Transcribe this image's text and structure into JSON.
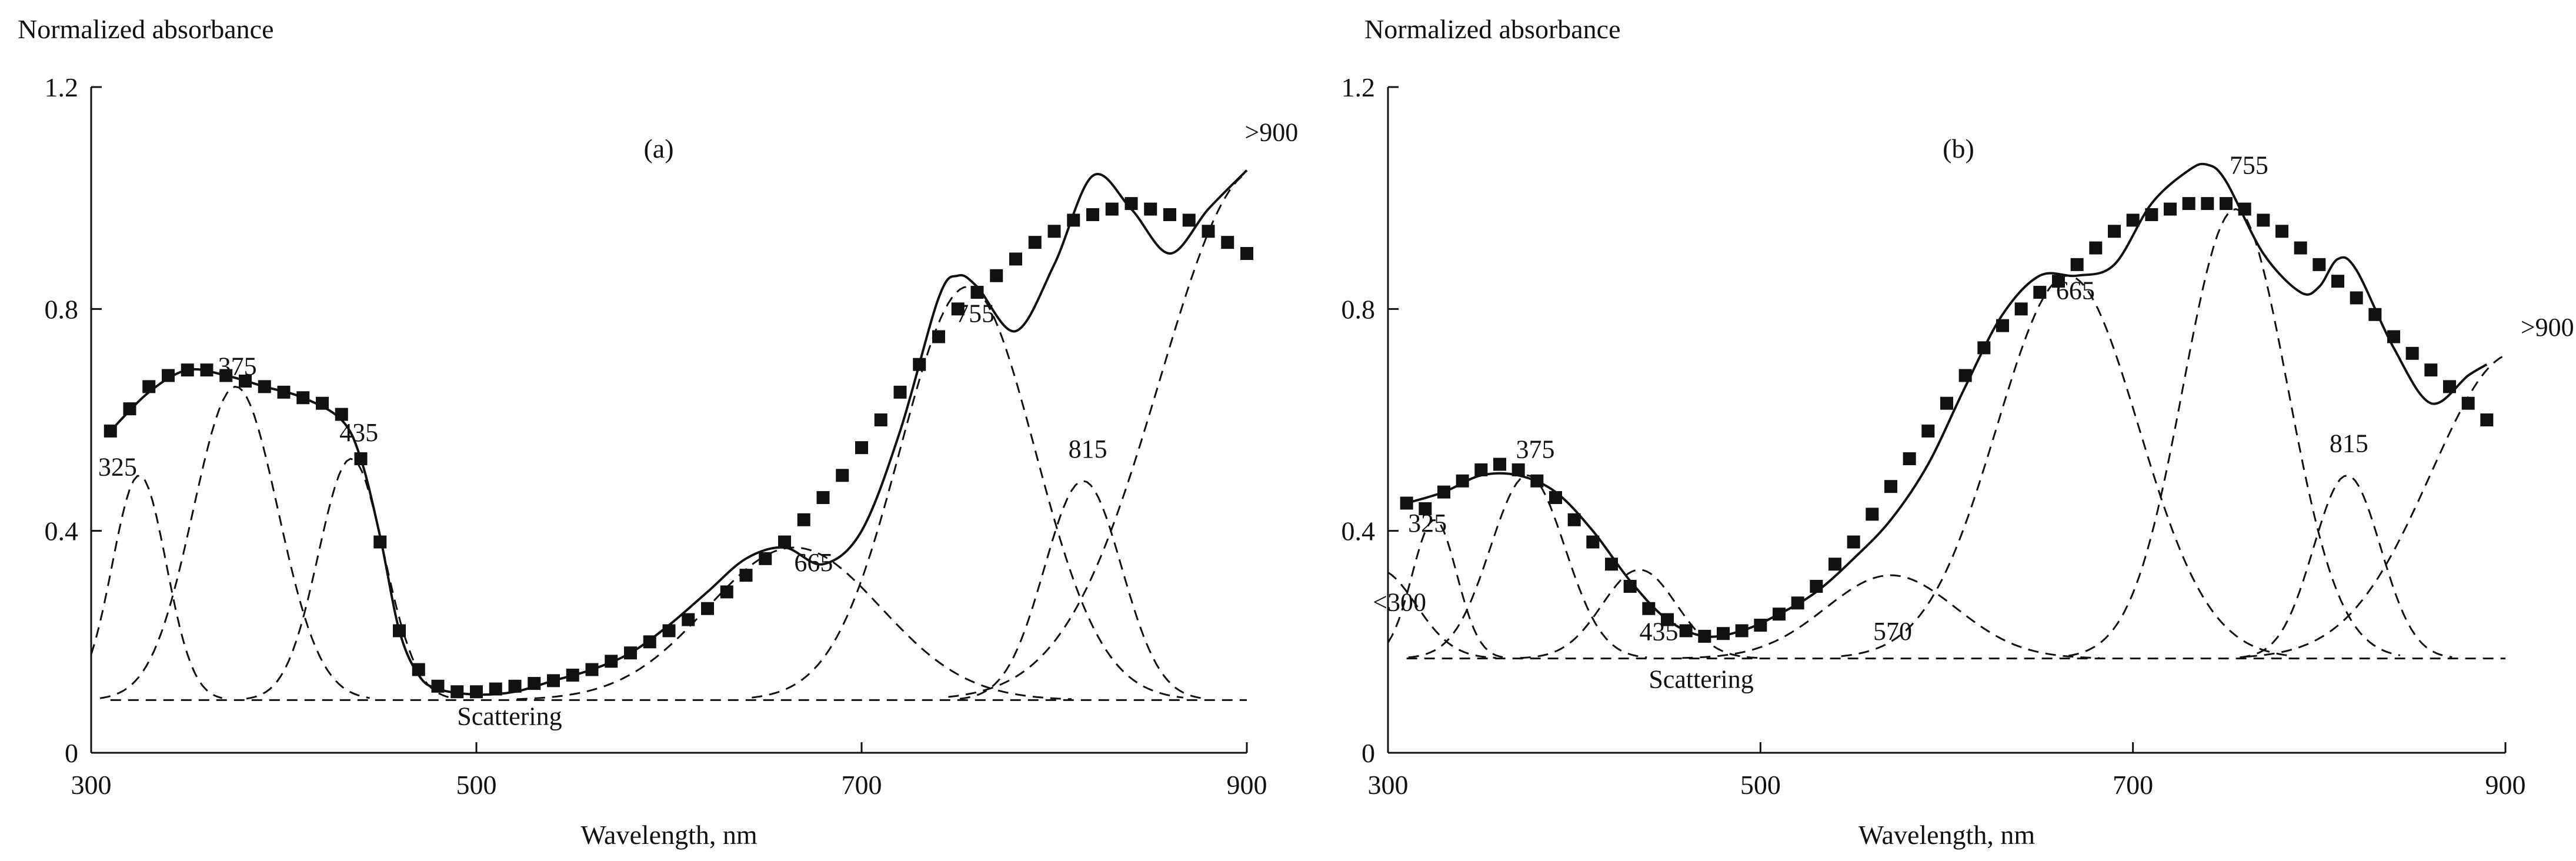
{
  "chart_data": [
    {
      "type": "line",
      "panel_label": "(a)",
      "ylabel": "Normalized absorbance",
      "xlabel": "Wavelength, nm",
      "xlim": [
        300,
        900
      ],
      "ylim": [
        0,
        1.2
      ],
      "xticks": [
        300,
        500,
        700,
        900
      ],
      "xtick_labels": [
        "300",
        "500",
        "700",
        "900"
      ],
      "yticks": [
        0,
        0.4,
        0.8,
        1.2
      ],
      "ytick_labels": [
        "0",
        "0.4",
        "0.8",
        "1.2"
      ],
      "scattering_level": 0.095,
      "scattering_label": "Scattering",
      "measured": {
        "name": "measured (markers)",
        "x": [
          310,
          320,
          330,
          340,
          350,
          360,
          370,
          380,
          390,
          400,
          410,
          420,
          430,
          440,
          450,
          460,
          470,
          480,
          490,
          500,
          510,
          520,
          530,
          540,
          550,
          560,
          570,
          580,
          590,
          600,
          610,
          620,
          630,
          640,
          650,
          660,
          670,
          680,
          690,
          700,
          710,
          720,
          730,
          740,
          750,
          760,
          770,
          780,
          790,
          800,
          810,
          820,
          830,
          840,
          850,
          860,
          870,
          880,
          890,
          900
        ],
        "y": [
          0.58,
          0.62,
          0.66,
          0.68,
          0.69,
          0.69,
          0.68,
          0.67,
          0.66,
          0.65,
          0.64,
          0.63,
          0.61,
          0.53,
          0.38,
          0.22,
          0.15,
          0.12,
          0.11,
          0.11,
          0.115,
          0.12,
          0.125,
          0.13,
          0.14,
          0.15,
          0.165,
          0.18,
          0.2,
          0.22,
          0.24,
          0.26,
          0.29,
          0.32,
          0.35,
          0.38,
          0.42,
          0.46,
          0.5,
          0.55,
          0.6,
          0.65,
          0.7,
          0.75,
          0.8,
          0.83,
          0.86,
          0.89,
          0.92,
          0.94,
          0.96,
          0.97,
          0.98,
          0.99,
          0.98,
          0.97,
          0.96,
          0.94,
          0.92,
          0.9
        ]
      },
      "fit": {
        "name": "fit (solid)",
        "x": [
          310,
          330,
          350,
          370,
          390,
          410,
          430,
          440,
          450,
          460,
          470,
          480,
          500,
          520,
          540,
          560,
          580,
          600,
          620,
          640,
          660,
          680,
          700,
          720,
          740,
          750,
          760,
          780,
          800,
          820,
          840,
          860,
          880,
          900
        ],
        "y": [
          0.58,
          0.65,
          0.69,
          0.68,
          0.66,
          0.64,
          0.6,
          0.53,
          0.39,
          0.22,
          0.14,
          0.115,
          0.105,
          0.11,
          0.13,
          0.15,
          0.18,
          0.23,
          0.29,
          0.35,
          0.37,
          0.34,
          0.4,
          0.58,
          0.82,
          0.86,
          0.84,
          0.76,
          0.88,
          1.04,
          0.98,
          0.9,
          0.98,
          1.05
        ]
      },
      "components": [
        {
          "label": "325",
          "center": 325,
          "peak": 0.5,
          "width": 14
        },
        {
          "label": "375",
          "center": 375,
          "peak": 0.66,
          "width": 22
        },
        {
          "label": "435",
          "center": 435,
          "peak": 0.53,
          "width": 17
        },
        {
          "label": "665",
          "center": 665,
          "peak": 0.37,
          "width": 45
        },
        {
          "label": "755",
          "center": 755,
          "peak": 0.84,
          "width": 35
        },
        {
          "label": "815",
          "center": 815,
          "peak": 0.49,
          "width": 20
        },
        {
          "label": ">900",
          "center": 905,
          "peak": 1.05,
          "width": 50
        }
      ],
      "peak_labels": [
        "325",
        "375",
        "435",
        "665",
        "755",
        "815",
        ">900"
      ]
    },
    {
      "type": "line",
      "panel_label": "(b)",
      "ylabel": "Normalized absorbance",
      "xlabel": "Wavelength, nm",
      "xlim": [
        300,
        900
      ],
      "ylim": [
        0,
        1.2
      ],
      "xticks": [
        300,
        500,
        700,
        900
      ],
      "xtick_labels": [
        "300",
        "500",
        "700",
        "900"
      ],
      "yticks": [
        0,
        0.4,
        0.8,
        1.2
      ],
      "ytick_labels": [
        "0",
        "0.4",
        "0.8",
        "1.2"
      ],
      "scattering_level": 0.17,
      "scattering_label": "Scattering",
      "measured": {
        "name": "measured (markers)",
        "x": [
          310,
          320,
          330,
          340,
          350,
          360,
          370,
          380,
          390,
          400,
          410,
          420,
          430,
          440,
          450,
          460,
          470,
          480,
          490,
          500,
          510,
          520,
          530,
          540,
          550,
          560,
          570,
          580,
          590,
          600,
          610,
          620,
          630,
          640,
          650,
          660,
          670,
          680,
          690,
          700,
          710,
          720,
          730,
          740,
          750,
          760,
          770,
          780,
          790,
          800,
          810,
          820,
          830,
          840,
          850,
          860,
          870,
          880,
          890
        ],
        "y": [
          0.45,
          0.44,
          0.47,
          0.49,
          0.51,
          0.52,
          0.51,
          0.49,
          0.46,
          0.42,
          0.38,
          0.34,
          0.3,
          0.26,
          0.24,
          0.22,
          0.21,
          0.215,
          0.22,
          0.23,
          0.25,
          0.27,
          0.3,
          0.34,
          0.38,
          0.43,
          0.48,
          0.53,
          0.58,
          0.63,
          0.68,
          0.73,
          0.77,
          0.8,
          0.83,
          0.85,
          0.88,
          0.91,
          0.94,
          0.96,
          0.97,
          0.98,
          0.99,
          0.99,
          0.99,
          0.98,
          0.96,
          0.94,
          0.91,
          0.88,
          0.85,
          0.82,
          0.79,
          0.75,
          0.72,
          0.69,
          0.66,
          0.63,
          0.6
        ]
      },
      "fit": {
        "name": "fit (solid)",
        "x": [
          310,
          330,
          350,
          370,
          390,
          410,
          430,
          450,
          470,
          490,
          510,
          530,
          550,
          570,
          590,
          610,
          630,
          650,
          670,
          690,
          710,
          730,
          740,
          750,
          770,
          790,
          800,
          810,
          820,
          840,
          860,
          880,
          890
        ],
        "y": [
          0.45,
          0.47,
          0.5,
          0.5,
          0.47,
          0.4,
          0.31,
          0.24,
          0.21,
          0.22,
          0.25,
          0.29,
          0.35,
          0.42,
          0.52,
          0.66,
          0.79,
          0.86,
          0.86,
          0.88,
          0.99,
          1.05,
          1.06,
          1.03,
          0.9,
          0.83,
          0.84,
          0.89,
          0.87,
          0.73,
          0.63,
          0.68,
          0.7
        ]
      },
      "components": [
        {
          "label": "<300",
          "center": 295,
          "peak": 0.33,
          "width": 20
        },
        {
          "label": "325",
          "center": 325,
          "peak": 0.42,
          "width": 12
        },
        {
          "label": "375",
          "center": 375,
          "peak": 0.5,
          "width": 20
        },
        {
          "label": "435",
          "center": 435,
          "peak": 0.33,
          "width": 20
        },
        {
          "label": "570",
          "center": 570,
          "peak": 0.32,
          "width": 35
        },
        {
          "label": "665",
          "center": 665,
          "peak": 0.86,
          "width": 38
        },
        {
          "label": "755",
          "center": 755,
          "peak": 0.98,
          "width": 28
        },
        {
          "label": "815",
          "center": 815,
          "peak": 0.5,
          "width": 18
        },
        {
          "label": ">900",
          "center": 905,
          "peak": 0.72,
          "width": 45
        }
      ],
      "peak_labels": [
        "<300",
        "325",
        "375",
        "435",
        "570",
        "665",
        "755",
        "815",
        ">900"
      ]
    }
  ]
}
